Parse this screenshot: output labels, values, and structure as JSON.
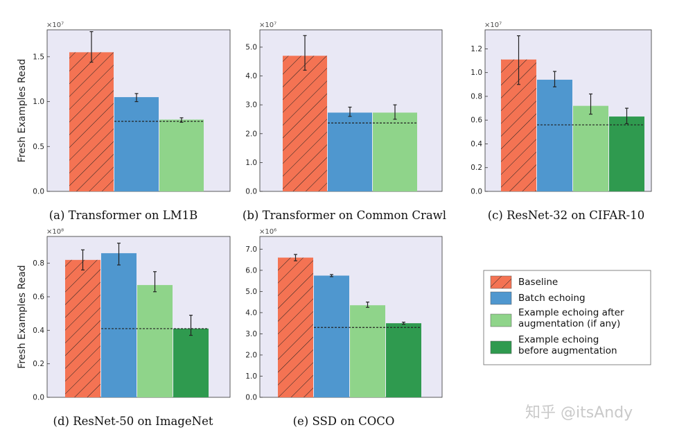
{
  "colors": {
    "baseline": "#f47353",
    "batch_echoing": "#4f97cf",
    "example_after": "#8fd48a",
    "example_before": "#2f9a4f",
    "panel_bg": "#e9e8f5",
    "target_line": "#222222"
  },
  "y_axis_label": "Fresh Examples Read",
  "legend": {
    "entries": [
      {
        "key": "baseline",
        "lines": [
          "Baseline"
        ]
      },
      {
        "key": "batch_echoing",
        "lines": [
          "Batch echoing"
        ]
      },
      {
        "key": "example_after",
        "lines": [
          "Example echoing after",
          "augmentation (if any)"
        ]
      },
      {
        "key": "example_before",
        "lines": [
          "Example echoing",
          "before augmentation"
        ]
      }
    ]
  },
  "watermark": "知乎 @itsAndy",
  "chart_data": [
    {
      "type": "bar",
      "caption": "(a) Transformer on LM1B",
      "exponent": "×10⁷",
      "ylim": [
        0,
        1.8
      ],
      "yticks": [
        0.0,
        0.5,
        1.0,
        1.5
      ],
      "tick_decimals": 1,
      "show_ylabel": true,
      "target_line": 0.78,
      "bars": [
        {
          "series": "baseline",
          "value": 1.55,
          "err_low": 1.44,
          "err_high": 1.78
        },
        {
          "series": "batch_echoing",
          "value": 1.05,
          "err_low": 1.0,
          "err_high": 1.09
        },
        {
          "series": "example_after",
          "value": 0.8,
          "err_low": 0.77,
          "err_high": 0.82
        }
      ]
    },
    {
      "type": "bar",
      "caption": "(b) Transformer on Common Crawl",
      "exponent": "×10⁷",
      "ylim": [
        0,
        5.6
      ],
      "yticks": [
        0.0,
        1.0,
        2.0,
        3.0,
        4.0,
        5.0
      ],
      "tick_decimals": 1,
      "show_ylabel": false,
      "target_line": 2.37,
      "bars": [
        {
          "series": "baseline",
          "value": 4.7,
          "err_low": 4.2,
          "err_high": 5.4
        },
        {
          "series": "batch_echoing",
          "value": 2.73,
          "err_low": 2.6,
          "err_high": 2.92
        },
        {
          "series": "example_after",
          "value": 2.73,
          "err_low": 2.5,
          "err_high": 3.0
        }
      ]
    },
    {
      "type": "bar",
      "caption": "(c) ResNet-32 on CIFAR-10",
      "exponent": "×10⁷",
      "ylim": [
        0,
        1.36
      ],
      "yticks": [
        0.0,
        0.2,
        0.4,
        0.6,
        0.8,
        1.0,
        1.2
      ],
      "tick_decimals": 1,
      "show_ylabel": false,
      "target_line": 0.56,
      "bars": [
        {
          "series": "baseline",
          "value": 1.11,
          "err_low": 0.9,
          "err_high": 1.31
        },
        {
          "series": "batch_echoing",
          "value": 0.94,
          "err_low": 0.88,
          "err_high": 1.01
        },
        {
          "series": "example_after",
          "value": 0.72,
          "err_low": 0.65,
          "err_high": 0.82
        },
        {
          "series": "example_before",
          "value": 0.63,
          "err_low": 0.57,
          "err_high": 0.7
        }
      ]
    },
    {
      "type": "bar",
      "caption": "(d) ResNet-50 on ImageNet",
      "exponent": "×10⁸",
      "ylim": [
        0,
        0.96
      ],
      "yticks": [
        0.0,
        0.2,
        0.4,
        0.6,
        0.8
      ],
      "tick_decimals": 1,
      "show_ylabel": true,
      "target_line": 0.41,
      "bars": [
        {
          "series": "baseline",
          "value": 0.82,
          "err_low": 0.76,
          "err_high": 0.88
        },
        {
          "series": "batch_echoing",
          "value": 0.86,
          "err_low": 0.79,
          "err_high": 0.92
        },
        {
          "series": "example_after",
          "value": 0.67,
          "err_low": 0.63,
          "err_high": 0.75
        },
        {
          "series": "example_before",
          "value": 0.41,
          "err_low": 0.37,
          "err_high": 0.49
        }
      ]
    },
    {
      "type": "bar",
      "caption": "(e) SSD on COCO",
      "exponent": "×10⁶",
      "ylim": [
        0,
        7.6
      ],
      "yticks": [
        0.0,
        1.0,
        2.0,
        3.0,
        4.0,
        5.0,
        6.0,
        7.0
      ],
      "tick_decimals": 1,
      "show_ylabel": false,
      "target_line": 3.3,
      "bars": [
        {
          "series": "baseline",
          "value": 6.6,
          "err_low": 6.45,
          "err_high": 6.75
        },
        {
          "series": "batch_echoing",
          "value": 5.75,
          "err_low": 5.7,
          "err_high": 5.8
        },
        {
          "series": "example_after",
          "value": 4.35,
          "err_low": 4.25,
          "err_high": 4.5
        },
        {
          "series": "example_before",
          "value": 3.5,
          "err_low": 3.45,
          "err_high": 3.55
        }
      ]
    }
  ]
}
